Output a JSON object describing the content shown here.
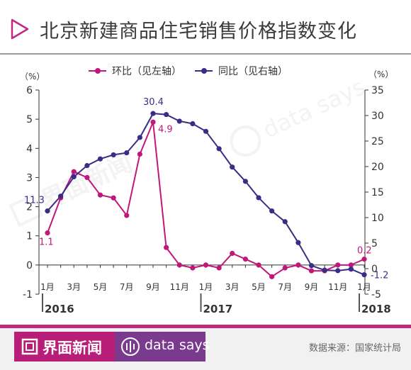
{
  "header": {
    "title": "北京新建商品住宅销售价格指数变化"
  },
  "footer": {
    "brand": "界面新闻",
    "sub_brand": "data says",
    "source": "数据来源：国家统计局"
  },
  "watermark": {
    "brand": "界面新闻",
    "sub_brand": "data says"
  },
  "colors": {
    "mom": "#c2177a",
    "yoy": "#3a2d86",
    "accent": "#c22a7f",
    "axis": "#333333"
  },
  "chart_data": {
    "type": "line",
    "dual_axis": true,
    "x": [
      "1月",
      "2月",
      "3月",
      "4月",
      "5月",
      "6月",
      "7月",
      "8月",
      "9月",
      "10月",
      "11月",
      "12月",
      "1月",
      "2月",
      "3月",
      "4月",
      "5月",
      "6月",
      "7月",
      "8月",
      "9月",
      "10月",
      "11月",
      "12月",
      "1月"
    ],
    "x_tick_labels": [
      "1月",
      "3月",
      "5月",
      "7月",
      "9月",
      "11月",
      "1月",
      "3月",
      "5月",
      "7月",
      "9月",
      "11月",
      "1月"
    ],
    "years": [
      "2016",
      "2017",
      "2018"
    ],
    "series": [
      {
        "name": "环比（见左轴）",
        "axis": "left",
        "values": [
          1.1,
          2.3,
          3.2,
          3.0,
          2.4,
          2.3,
          1.7,
          3.8,
          4.9,
          0.6,
          0.0,
          -0.1,
          0.0,
          -0.1,
          0.4,
          0.2,
          0.0,
          -0.4,
          -0.1,
          0.0,
          -0.2,
          -0.2,
          0.0,
          0.0,
          0.2
        ]
      },
      {
        "name": "同比（见右轴）",
        "axis": "right",
        "values": [
          11.3,
          14.2,
          18.0,
          20.2,
          21.5,
          22.3,
          22.7,
          25.7,
          30.4,
          30.2,
          28.9,
          28.4,
          26.9,
          23.5,
          19.9,
          17.1,
          13.9,
          11.3,
          9.2,
          5.1,
          0.6,
          -0.3,
          -0.4,
          -0.1,
          -1.2
        ]
      }
    ],
    "data_labels": {
      "left": [
        {
          "index": 0,
          "text": "1.1"
        },
        {
          "index": 8,
          "text": "4.9"
        },
        {
          "index": 24,
          "text": "0.2"
        }
      ],
      "right": [
        {
          "index": 0,
          "text": "11.3"
        },
        {
          "index": 8,
          "text": "30.4"
        },
        {
          "index": 24,
          "text": "-1.2"
        }
      ]
    },
    "y_left": {
      "unit": "（%）",
      "ticks": [
        "6",
        "5",
        "4",
        "3",
        "2",
        "1",
        "0",
        "-1"
      ],
      "ylim": [
        -1,
        6
      ]
    },
    "y_right": {
      "unit": "（%）",
      "ticks": [
        "35",
        "30",
        "25",
        "20",
        "15",
        "10",
        "5",
        "0",
        "-5"
      ],
      "ylim": [
        -5,
        35
      ]
    },
    "grid": false,
    "legend": "top"
  }
}
